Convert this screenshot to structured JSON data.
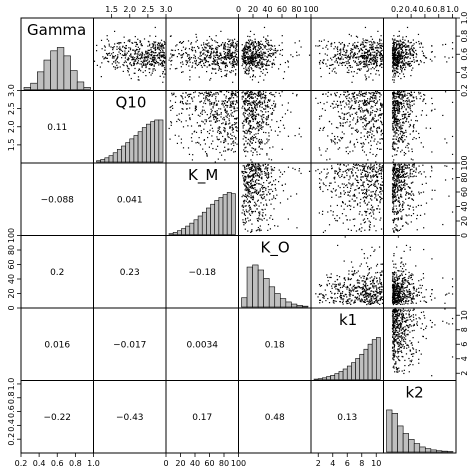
{
  "chart_data": {
    "type": "scatter-matrix",
    "variables": [
      {
        "name": "Gamma",
        "range": [
          0.2,
          1.0
        ],
        "ticks": [
          "0.2",
          "0.4",
          "0.6",
          "0.8",
          "1.0"
        ],
        "hist": [
          0.05,
          0.15,
          0.42,
          0.7,
          0.92,
          1.0,
          0.8,
          0.45,
          0.18,
          0.05
        ]
      },
      {
        "name": "Q10",
        "range": [
          1.0,
          3.0
        ],
        "ticks": [
          "1.5",
          "2.0",
          "2.5",
          "3.0"
        ],
        "hist": [
          0.03,
          0.06,
          0.1,
          0.15,
          0.22,
          0.3,
          0.38,
          0.46,
          0.55,
          0.63,
          0.72,
          0.82,
          0.9,
          0.96,
          1.0,
          1.0
        ]
      },
      {
        "name": "K_M",
        "range": [
          0,
          100
        ],
        "ticks": [
          "0",
          "20",
          "40",
          "60",
          "80",
          "100"
        ],
        "hist": [
          0.02,
          0.05,
          0.09,
          0.14,
          0.2,
          0.27,
          0.35,
          0.44,
          0.53,
          0.63,
          0.72,
          0.81,
          0.88,
          0.95,
          1.0,
          0.97
        ]
      },
      {
        "name": "K_O",
        "range": [
          0,
          100
        ],
        "ticks": [
          "0",
          "20",
          "40",
          "60",
          "80",
          "100"
        ],
        "hist": [
          0.22,
          0.95,
          1.0,
          0.88,
          0.68,
          0.48,
          0.32,
          0.2,
          0.12,
          0.07,
          0.04,
          0.02
        ]
      },
      {
        "name": "k1",
        "range": [
          1,
          11
        ],
        "ticks": [
          "2",
          "4",
          "6",
          "8",
          "10"
        ],
        "hist": [
          0.01,
          0.02,
          0.04,
          0.07,
          0.1,
          0.14,
          0.19,
          0.25,
          0.32,
          0.4,
          0.5,
          0.6,
          0.72,
          0.84,
          0.95,
          1.0
        ]
      },
      {
        "name": "k2",
        "range": [
          0,
          1.05
        ],
        "ticks": [
          "0.2",
          "0.4",
          "0.6",
          "0.8",
          "1.0"
        ],
        "hist": [
          1.0,
          0.92,
          0.62,
          0.44,
          0.3,
          0.2,
          0.12,
          0.08,
          0.05,
          0.03,
          0.02,
          0.01
        ]
      }
    ],
    "correlations": [
      {
        "row": 1,
        "col": 0,
        "value": "0.11"
      },
      {
        "row": 2,
        "col": 0,
        "value": "−0.088"
      },
      {
        "row": 2,
        "col": 1,
        "value": "0.041"
      },
      {
        "row": 3,
        "col": 0,
        "value": "0.2"
      },
      {
        "row": 3,
        "col": 1,
        "value": "0.23"
      },
      {
        "row": 3,
        "col": 2,
        "value": "−0.18"
      },
      {
        "row": 4,
        "col": 0,
        "value": "0.016"
      },
      {
        "row": 4,
        "col": 1,
        "value": "−0.017"
      },
      {
        "row": 4,
        "col": 2,
        "value": "0.0034"
      },
      {
        "row": 4,
        "col": 3,
        "value": "0.18"
      },
      {
        "row": 5,
        "col": 0,
        "value": "−0.22"
      },
      {
        "row": 5,
        "col": 1,
        "value": "−0.43"
      },
      {
        "row": 5,
        "col": 2,
        "value": "0.17"
      },
      {
        "row": 5,
        "col": 3,
        "value": "0.48"
      },
      {
        "row": 5,
        "col": 4,
        "value": "0.13"
      }
    ],
    "upper_panels": "scatter",
    "diagonal_panels": "histogram",
    "lower_panels": "correlation"
  }
}
